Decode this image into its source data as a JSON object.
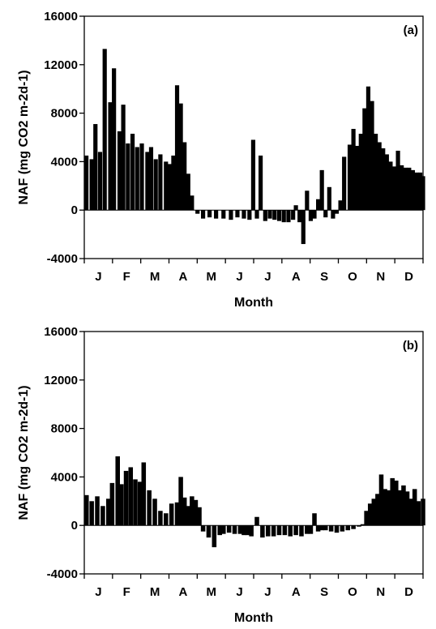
{
  "figure": {
    "panels": [
      {
        "label": "(a)",
        "xlabel": "Month",
        "ylabel": "NAF (mg CO2 m-2d-1)"
      },
      {
        "label": "(b)",
        "xlabel": "Month",
        "ylabel": "NAF (mg CO2 m-2d-1)"
      }
    ]
  },
  "chart_data": [
    {
      "type": "bar",
      "title": "",
      "panel_label": "(a)",
      "xlabel": "Month",
      "ylabel": "NAF (mg CO2 m-2d-1)",
      "ylim": [
        -4000,
        16000
      ],
      "yticks": [
        -4000,
        0,
        4000,
        8000,
        12000,
        16000
      ],
      "x_tick_labels": [
        "J",
        "F",
        "M",
        "A",
        "M",
        "J",
        "J",
        "A",
        "S",
        "O",
        "N",
        "D"
      ],
      "xlim": [
        0,
        365
      ],
      "grid": false,
      "color": "#000000",
      "series": [
        {
          "x": [
            1,
            8,
            12,
            17,
            22,
            28,
            32,
            38,
            42,
            47,
            52,
            57,
            62,
            68,
            72,
            77,
            82,
            88,
            92,
            96,
            100,
            104,
            108,
            112,
            116,
            122,
            128,
            135,
            142,
            150,
            158,
            165,
            172,
            178,
            182,
            186,
            190,
            195,
            200,
            205,
            210,
            215,
            220,
            225,
            228,
            232,
            236,
            240,
            244,
            248,
            252,
            256,
            260,
            264,
            268,
            272,
            276,
            280,
            286,
            290,
            294,
            298,
            302,
            306,
            310,
            314,
            318,
            322,
            326,
            330,
            334,
            338,
            342,
            346,
            350,
            354,
            358,
            362,
            365
          ],
          "values": [
            4500,
            4200,
            7100,
            4800,
            13300,
            8900,
            11700,
            6500,
            8700,
            5500,
            6300,
            5200,
            5500,
            4800,
            5200,
            4200,
            4600,
            4000,
            3800,
            4500,
            10300,
            8800,
            5600,
            3000,
            1200,
            -300,
            -700,
            -600,
            -700,
            -700,
            -800,
            -600,
            -700,
            -800,
            5800,
            -700,
            4500,
            -900,
            -700,
            -800,
            -900,
            -1000,
            -1000,
            -800,
            400,
            -1000,
            -2800,
            1600,
            -900,
            -700,
            900,
            3300,
            -600,
            1900,
            -700,
            -300,
            800,
            4400,
            5400,
            6700,
            5300,
            6300,
            8400,
            10200,
            9000,
            6300,
            5600,
            5100,
            4600,
            4000,
            3600,
            4900,
            3700,
            3500,
            3500,
            3300,
            3100,
            3100,
            2800
          ]
        }
      ]
    },
    {
      "type": "bar",
      "title": "",
      "panel_label": "(b)",
      "xlabel": "Month",
      "ylabel": "NAF (mg CO2 m-2d-1)",
      "ylim": [
        -4000,
        16000
      ],
      "yticks": [
        -4000,
        0,
        4000,
        8000,
        12000,
        16000
      ],
      "x_tick_labels": [
        "J",
        "F",
        "M",
        "A",
        "M",
        "J",
        "J",
        "A",
        "S",
        "O",
        "N",
        "D"
      ],
      "xlim": [
        0,
        365
      ],
      "grid": false,
      "color": "#000000",
      "series": [
        {
          "x": [
            1,
            8,
            14,
            20,
            26,
            30,
            36,
            40,
            45,
            50,
            55,
            60,
            64,
            70,
            76,
            82,
            88,
            94,
            100,
            104,
            108,
            112,
            116,
            120,
            124,
            128,
            134,
            140,
            146,
            150,
            156,
            162,
            168,
            172,
            176,
            180,
            186,
            192,
            198,
            204,
            210,
            216,
            222,
            228,
            234,
            240,
            244,
            248,
            252,
            256,
            260,
            266,
            272,
            278,
            284,
            290,
            296,
            300,
            304,
            308,
            312,
            316,
            320,
            324,
            328,
            332,
            336,
            340,
            344,
            348,
            352,
            356,
            360,
            365
          ],
          "values": [
            2500,
            2000,
            2400,
            1600,
            2200,
            3500,
            5700,
            3400,
            4500,
            4800,
            3800,
            3600,
            5200,
            2900,
            2200,
            1200,
            1000,
            1800,
            1900,
            4000,
            2300,
            1600,
            2400,
            2100,
            1500,
            -500,
            -1000,
            -1800,
            -800,
            -700,
            -600,
            -700,
            -700,
            -800,
            -800,
            -900,
            700,
            -1000,
            -900,
            -900,
            -800,
            -800,
            -900,
            -800,
            -900,
            -700,
            -700,
            1000,
            -500,
            -400,
            -400,
            -500,
            -600,
            -500,
            -400,
            -300,
            -100,
            100,
            1200,
            1800,
            2200,
            2600,
            4200,
            3000,
            2900,
            3900,
            3700,
            2900,
            3300,
            2800,
            2200,
            3000,
            2000,
            2200
          ]
        }
      ]
    }
  ]
}
